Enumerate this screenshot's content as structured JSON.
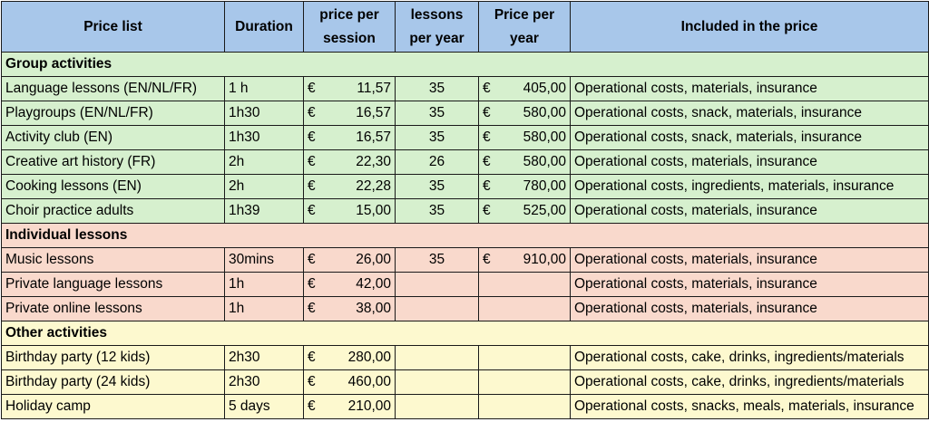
{
  "headers": [
    "Price list",
    "Duration",
    "price per session",
    "lessons per year",
    "Price per year",
    "Included in the price"
  ],
  "currency": "€",
  "sections": [
    {
      "title": "Group activities",
      "color": "#d6f0ce",
      "rows": [
        {
          "name": "Language lessons (EN/NL/FR)",
          "duration": "1 h",
          "price": "11,57",
          "lessons": "35",
          "year": "405,00",
          "included": "Operational costs, materials, insurance"
        },
        {
          "name": "Playgroups (EN/NL/FR)",
          "duration": "1h30",
          "price": "16,57",
          "lessons": "35",
          "year": "580,00",
          "included": "Operational costs, snack, materials, insurance"
        },
        {
          "name": "Activity club (EN)",
          "duration": "1h30",
          "price": "16,57",
          "lessons": "35",
          "year": "580,00",
          "included": "Operational costs, snack, materials, insurance"
        },
        {
          "name": "Creative art history (FR)",
          "duration": "2h",
          "price": "22,30",
          "lessons": "26",
          "year": "580,00",
          "included": "Operational costs, materials, insurance"
        },
        {
          "name": "Cooking lessons (EN)",
          "duration": "2h",
          "price": "22,28",
          "lessons": "35",
          "year": "780,00",
          "included": "Operational costs, ingredients, materials, insurance"
        },
        {
          "name": "Choir practice adults",
          "duration": "1h39",
          "price": "15,00",
          "lessons": "35",
          "year": "525,00",
          "included": "Operational costs, materials, insurance"
        }
      ]
    },
    {
      "title": "Individual lessons",
      "color": "#f9d9cc",
      "rows": [
        {
          "name": "Music lessons",
          "duration": "30mins",
          "price": "26,00",
          "lessons": "35",
          "year": "910,00",
          "included": "Operational costs, materials, insurance"
        },
        {
          "name": "Private language lessons",
          "duration": "1h",
          "price": "42,00",
          "lessons": "",
          "year": "",
          "included": "Operational costs, materials, insurance"
        },
        {
          "name": "Private online lessons",
          "duration": "1h",
          "price": "38,00",
          "lessons": "",
          "year": "",
          "included": "Operational costs, materials, insurance"
        }
      ]
    },
    {
      "title": "Other activities",
      "color": "#fdf9cf",
      "rows": [
        {
          "name": "Birthday party (12 kids)",
          "duration": "2h30",
          "price": "280,00",
          "lessons": "",
          "year": "",
          "included": "Operational costs, cake, drinks, ingredients/materials"
        },
        {
          "name": "Birthday party (24 kids)",
          "duration": "2h30",
          "price": "460,00",
          "lessons": "",
          "year": "",
          "included": "Operational costs, cake, drinks, ingredients/materials"
        },
        {
          "name": "Holiday camp",
          "duration": "5 days",
          "price": "210,00",
          "lessons": "",
          "year": "",
          "included": "Operational costs, snacks, meals, materials, insurance"
        }
      ]
    }
  ]
}
